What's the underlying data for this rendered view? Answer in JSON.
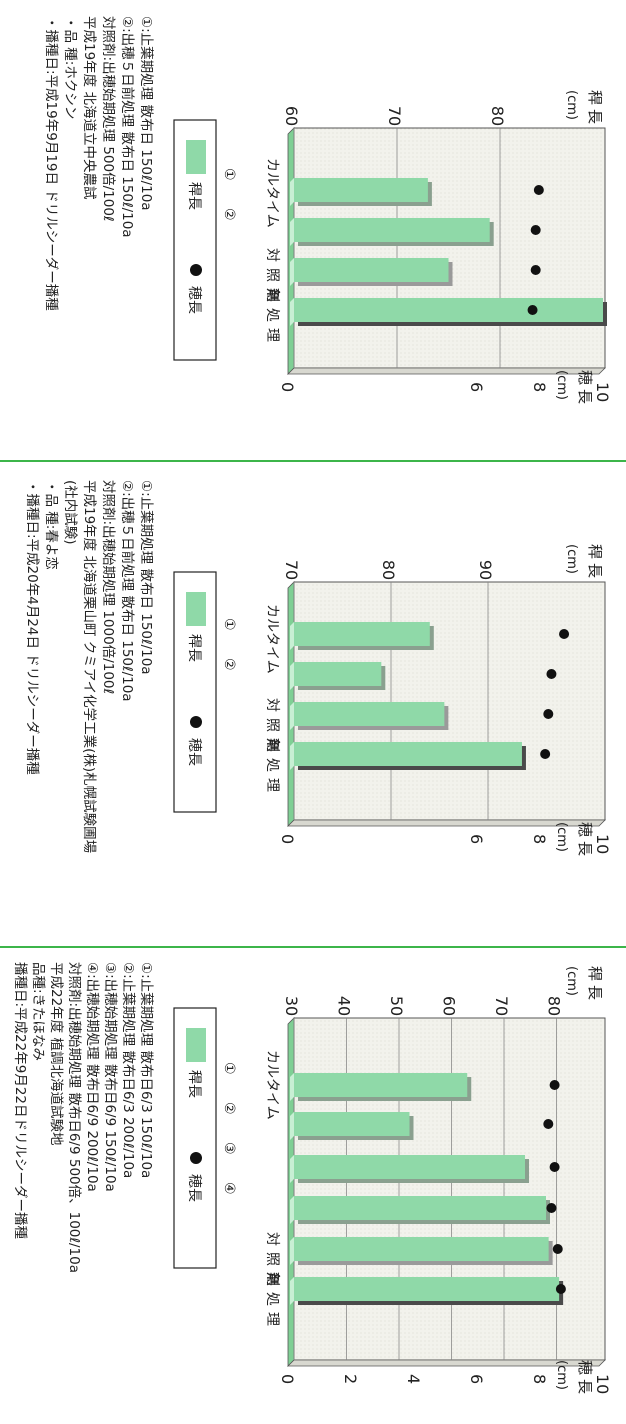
{
  "colors": {
    "bar_face": "#8fd9a8",
    "bar_top": "#c8efd4",
    "bar_shadow": "#4a4a4a",
    "control_shadow": "#9a9a9a",
    "panel_bg": "#f3f3ee",
    "divider": "#3cb54a",
    "dot": "#111111"
  },
  "labels": {
    "stem": "稈長",
    "stem_unit": "(cm)",
    "ear": "穂長",
    "ear_unit": "(cm)",
    "product": "カルタイム",
    "control": "対照剤",
    "untreated": "無処理",
    "legend_stem": "稈長",
    "legend_ear": "穂長",
    "t1": "①",
    "t2": "②",
    "t3": "③",
    "t4": "④"
  },
  "chart_data": [
    {
      "type": "bar",
      "categories": [
        "①",
        "②",
        "対照剤",
        "無処理"
      ],
      "series": [
        {
          "name": "稈長",
          "values": [
            73,
            79,
            75,
            90
          ]
        },
        {
          "name": "穂長",
          "values": [
            7.9,
            7.8,
            7.8,
            7.7
          ]
        }
      ],
      "stem_ticks": [
        60,
        70,
        80
      ],
      "stem_lim": [
        60,
        95
      ],
      "ear_ticks": [
        0,
        6,
        8,
        10
      ],
      "ear_lim": [
        0,
        10
      ],
      "notes": [
        "①:止葉期処理 散布日 150ℓ/10a",
        "②:出穂５日前処理 散布日 150ℓ/10a",
        "対照剤:出穂始期処理 500倍/100ℓ",
        "平成19年度 北海道立中央農試",
        "・品 種:ホクシン",
        "・播種日:平成19年9月19日 ドリルシーダー播種"
      ]
    },
    {
      "type": "bar",
      "categories": [
        "①",
        "②",
        "対照剤",
        "無処理"
      ],
      "series": [
        {
          "name": "稈長",
          "values": [
            84,
            79,
            85.5,
            93.5
          ]
        },
        {
          "name": "穂長",
          "values": [
            8.7,
            8.3,
            8.2,
            8.1
          ]
        }
      ],
      "stem_ticks": [
        70,
        80,
        90
      ],
      "stem_lim": [
        70,
        100
      ],
      "ear_ticks": [
        0,
        6,
        8,
        10
      ],
      "ear_lim": [
        0,
        10
      ],
      "notes": [
        "①:止葉期処理 散布日 150ℓ/10a",
        "②:出穂５日前処理 散布日 150ℓ/10a",
        "対照剤:出穂始期処理 1000倍/100ℓ",
        "平成19年度 北海道栗山町 クミアイ化学工業(株)札幌試験圃場",
        "(社内試験)",
        "・品 種:春よ恋",
        "・播種日:平成20年4月24日 ドリルシーダー播種"
      ]
    },
    {
      "type": "bar",
      "categories": [
        "①",
        "②",
        "③",
        "④",
        "対照剤",
        "無処理"
      ],
      "series": [
        {
          "name": "稈長",
          "values": [
            63,
            52,
            74,
            78,
            78.5,
            80.5
          ]
        },
        {
          "name": "穂長",
          "values": [
            8.4,
            8.2,
            8.4,
            8.3,
            8.5,
            8.6
          ]
        }
      ],
      "stem_ticks": [
        30,
        40,
        50,
        60,
        70,
        80
      ],
      "stem_lim": [
        30,
        88
      ],
      "ear_ticks": [
        0,
        2,
        4,
        6,
        8,
        10
      ],
      "ear_lim": [
        0,
        10
      ],
      "notes": [
        "①:止葉期処理 散布日6/3 150ℓ/10a",
        "②:止葉期処理 散布日6/3 200ℓ/10a",
        "③:出穂始期処理 散布日6/9 150ℓ/10a",
        "④:出穂始期処理 散布日6/9 200ℓ/10a",
        "対照剤:出穂始期処理 散布日6/9 500倍、100ℓ/10a",
        "平成22年度 植調北海道試験地",
        "品種:きたほなみ",
        "播種日:平成22年9月22日ドリルシーダー播種"
      ]
    }
  ]
}
